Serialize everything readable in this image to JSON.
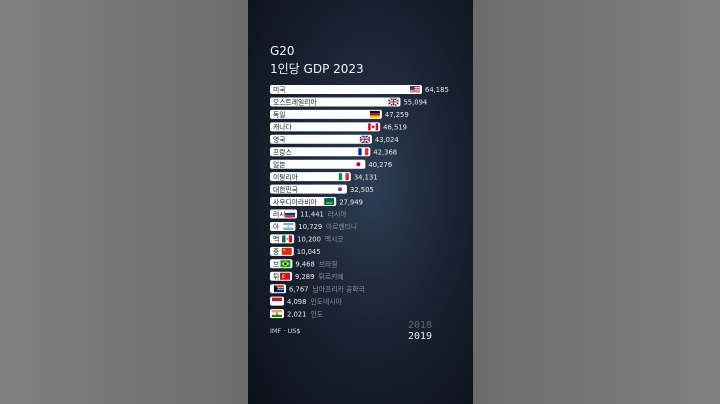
{
  "header": {
    "title": "G20",
    "subtitle": "1인당 GDP 2023"
  },
  "footer": {
    "source": "IMF · US$",
    "year_previous": "2018",
    "year_current": "2019"
  },
  "colors": {
    "bar": "#ffffff",
    "bar_text": "#222222",
    "value_text": "#e8e8e8",
    "faded_label": "#8a8f98"
  },
  "chart_data": {
    "type": "bar",
    "orientation": "horizontal",
    "title": "G20",
    "subtitle": "1인당 GDP 2023",
    "xlim": [
      0,
      64185
    ],
    "categories": [
      "미국",
      "오스트레일리아",
      "독일",
      "캐나다",
      "영국",
      "프랑스",
      "일본",
      "이탈리아",
      "대한민국",
      "사우디아라비아",
      "러시아",
      "아르헨티나",
      "멕시코",
      "중국",
      "브라질",
      "튀르키예",
      "남아프리카 공화국",
      "인도네시아",
      "인도"
    ],
    "bar_labels": [
      "미국",
      "오스트레일리아",
      "독일",
      "캐나다",
      "영국",
      "프랑스",
      "일본",
      "이탈리아",
      "대한민국",
      "사우디아라비아",
      "러시",
      "아",
      "멕",
      "중",
      "브",
      "튀",
      "",
      "",
      ""
    ],
    "outside_labels": [
      "",
      "",
      "",
      "",
      "",
      "",
      "",
      "",
      "",
      "",
      "러시아",
      "아르헨티나",
      "멕시코",
      "",
      "브라질",
      "튀르키예",
      "남아프리카 공화국",
      "인도네시아",
      "인도"
    ],
    "values": [
      64185,
      55094,
      47259,
      46519,
      43024,
      42368,
      40276,
      34131,
      32505,
      27949,
      11441,
      10729,
      10200,
      10045,
      9468,
      9289,
      6767,
      4098,
      2021
    ],
    "value_labels": [
      "64,185",
      "55,094",
      "47,259",
      "46,519",
      "43,024",
      "42,368",
      "40,276",
      "34,131",
      "32,505",
      "27,949",
      "11,441",
      "10,729",
      "10,200",
      "10,045",
      "9,468",
      "9,289",
      "6,767",
      "4,098",
      "2,021"
    ],
    "flag_icons": [
      "flag-us-icon",
      "flag-au-icon",
      "flag-de-icon",
      "flag-ca-icon",
      "flag-gb-icon",
      "flag-fr-icon",
      "flag-jp-icon",
      "flag-it-icon",
      "flag-kr-icon",
      "flag-sa-icon",
      "flag-ru-icon",
      "flag-ar-icon",
      "flag-mx-icon",
      "flag-cn-icon",
      "flag-br-icon",
      "flag-tr-icon",
      "flag-za-icon",
      "flag-id-icon",
      "flag-in-icon"
    ],
    "grid": false,
    "legend": "none"
  }
}
